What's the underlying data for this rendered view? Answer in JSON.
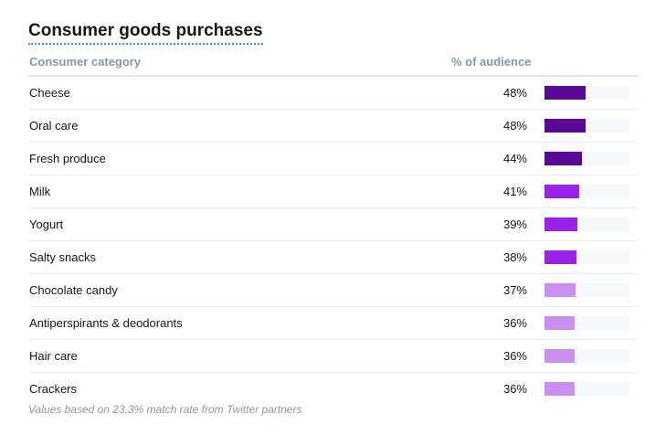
{
  "title": "Consumer goods purchases",
  "columns": {
    "category": "Consumer category",
    "percent": "% of audience"
  },
  "rows": [
    {
      "label": "Cheese",
      "value": "48%",
      "fraction": 0.48,
      "color": "#5a0896"
    },
    {
      "label": "Oral care",
      "value": "48%",
      "fraction": 0.48,
      "color": "#5a0896"
    },
    {
      "label": "Fresh produce",
      "value": "44%",
      "fraction": 0.44,
      "color": "#5a0896"
    },
    {
      "label": "Milk",
      "value": "41%",
      "fraction": 0.41,
      "color": "#9b22e8"
    },
    {
      "label": "Yogurt",
      "value": "39%",
      "fraction": 0.39,
      "color": "#9b22e8"
    },
    {
      "label": "Salty snacks",
      "value": "38%",
      "fraction": 0.38,
      "color": "#9b22e8"
    },
    {
      "label": "Chocolate candy",
      "value": "37%",
      "fraction": 0.37,
      "color": "#cc8ff0"
    },
    {
      "label": "Antiperspirants & deodorants",
      "value": "36%",
      "fraction": 0.36,
      "color": "#cc8ff0"
    },
    {
      "label": "Hair care",
      "value": "36%",
      "fraction": 0.36,
      "color": "#cc8ff0"
    },
    {
      "label": "Crackers",
      "value": "36%",
      "fraction": 0.36,
      "color": "#cc8ff0"
    }
  ],
  "footnote": "Values based on 23.3% match rate from Twitter partners",
  "colors": {
    "track": "#f5f8fa",
    "title_underline": "#1da1f2"
  }
}
